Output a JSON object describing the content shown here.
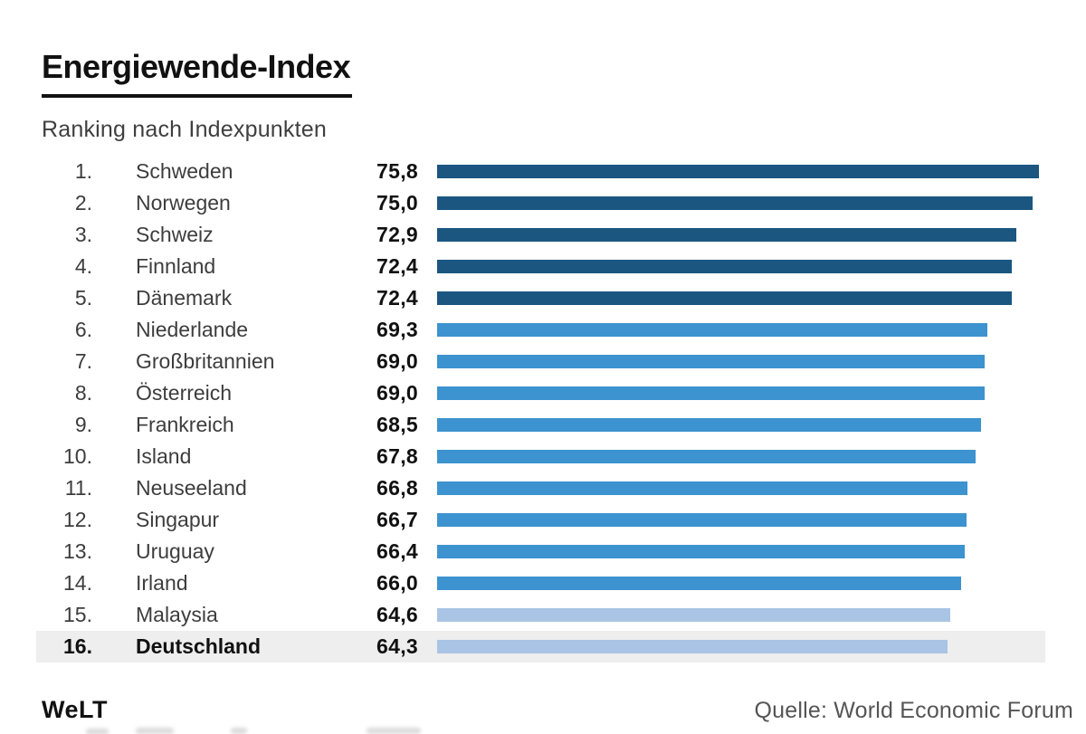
{
  "header": {
    "title": "Energiewende-Index",
    "subtitle": "Ranking nach Indexpunkten"
  },
  "chart_data": {
    "type": "bar",
    "orientation": "horizontal",
    "title": "Energiewende-Index",
    "subtitle": "Ranking nach Indexpunkten",
    "xlim": [
      0,
      75.8
    ],
    "value_format": "decimal-comma",
    "legend": "none",
    "grid": false,
    "entries": [
      {
        "rank": "1.",
        "country": "Schweden",
        "value": 75.8,
        "label": "75,8",
        "tier": "dark",
        "highlight": false
      },
      {
        "rank": "2.",
        "country": "Norwegen",
        "value": 75.0,
        "label": "75,0",
        "tier": "dark",
        "highlight": false
      },
      {
        "rank": "3.",
        "country": "Schweiz",
        "value": 72.9,
        "label": "72,9",
        "tier": "dark",
        "highlight": false
      },
      {
        "rank": "4.",
        "country": "Finnland",
        "value": 72.4,
        "label": "72,4",
        "tier": "dark",
        "highlight": false
      },
      {
        "rank": "5.",
        "country": "Dänemark",
        "value": 72.4,
        "label": "72,4",
        "tier": "dark",
        "highlight": false
      },
      {
        "rank": "6.",
        "country": "Niederlande",
        "value": 69.3,
        "label": "69,3",
        "tier": "mid",
        "highlight": false
      },
      {
        "rank": "7.",
        "country": "Großbritannien",
        "value": 69.0,
        "label": "69,0",
        "tier": "mid",
        "highlight": false
      },
      {
        "rank": "8.",
        "country": "Österreich",
        "value": 69.0,
        "label": "69,0",
        "tier": "mid",
        "highlight": false
      },
      {
        "rank": "9.",
        "country": "Frankreich",
        "value": 68.5,
        "label": "68,5",
        "tier": "mid",
        "highlight": false
      },
      {
        "rank": "10.",
        "country": "Island",
        "value": 67.8,
        "label": "67,8",
        "tier": "mid",
        "highlight": false
      },
      {
        "rank": "11.",
        "country": "Neuseeland",
        "value": 66.8,
        "label": "66,8",
        "tier": "mid",
        "highlight": false
      },
      {
        "rank": "12.",
        "country": "Singapur",
        "value": 66.7,
        "label": "66,7",
        "tier": "mid",
        "highlight": false
      },
      {
        "rank": "13.",
        "country": "Uruguay",
        "value": 66.4,
        "label": "66,4",
        "tier": "mid",
        "highlight": false
      },
      {
        "rank": "14.",
        "country": "Irland",
        "value": 66.0,
        "label": "66,0",
        "tier": "mid",
        "highlight": false
      },
      {
        "rank": "15.",
        "country": "Malaysia",
        "value": 64.6,
        "label": "64,6",
        "tier": "light",
        "highlight": false
      },
      {
        "rank": "16.",
        "country": "Deutschland",
        "value": 64.3,
        "label": "64,3",
        "tier": "light",
        "highlight": true
      }
    ]
  },
  "palette": {
    "bar_dark": "#1a5680",
    "bar_mid": "#3c93cf",
    "bar_light": "#a9c4e4",
    "highlight_row_bg": "#eeeeee",
    "title_color": "#111111",
    "label_color": "#3d3d3d",
    "source_color": "#555555"
  },
  "footer": {
    "brand": "WeLT",
    "source": "Quelle: World Economic Forum"
  }
}
